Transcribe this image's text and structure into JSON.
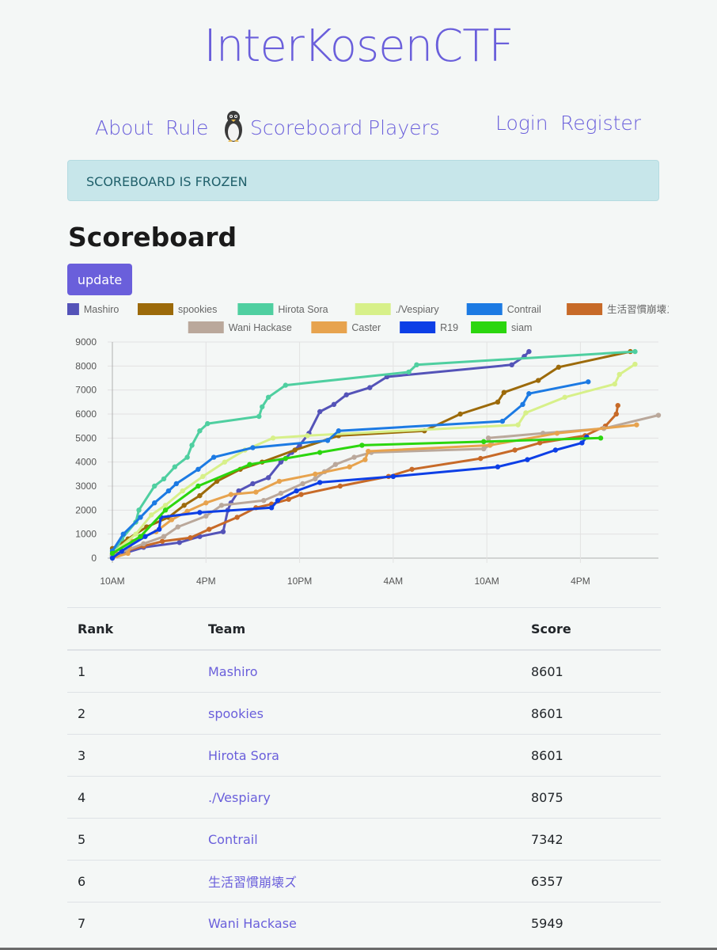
{
  "site": {
    "title": "InterKosenCTF"
  },
  "nav": {
    "about": "About",
    "rule": "Rule",
    "scoreboard": "Scoreboard",
    "players": "Players",
    "login": "Login",
    "register": "Register"
  },
  "alert": {
    "text": "SCOREBOARD IS FROZEN"
  },
  "page": {
    "heading": "Scoreboard",
    "update_label": "update"
  },
  "chart_data": {
    "type": "line",
    "y_ticks": [
      "0",
      "1000",
      "2000",
      "3000",
      "4000",
      "5000",
      "6000",
      "7000",
      "8000",
      "9000"
    ],
    "ylim": [
      0,
      9000
    ],
    "x_ticks": [
      "10AM",
      "4PM",
      "10PM",
      "4AM",
      "10AM",
      "4PM"
    ],
    "x_tick_hours": [
      0,
      6,
      12,
      18,
      24,
      30
    ],
    "xlim_hours": [
      0,
      35
    ],
    "grid": true,
    "legend_position": "top",
    "series": [
      {
        "name": "Mashiro",
        "color": "#5453b8",
        "points": [
          [
            0,
            50
          ],
          [
            2,
            450
          ],
          [
            4.3,
            650
          ],
          [
            5.6,
            900
          ],
          [
            7.1,
            1100
          ],
          [
            7.4,
            2000
          ],
          [
            7.6,
            2300
          ],
          [
            8.1,
            2800
          ],
          [
            9,
            3100
          ],
          [
            10,
            3350
          ],
          [
            10.8,
            4000
          ],
          [
            11.5,
            4400
          ],
          [
            12,
            4700
          ],
          [
            12.6,
            5200
          ],
          [
            13.3,
            6100
          ],
          [
            14.2,
            6400
          ],
          [
            15,
            6800
          ],
          [
            16.5,
            7100
          ],
          [
            17.6,
            7550
          ],
          [
            25.6,
            8050
          ],
          [
            26.4,
            8400
          ],
          [
            26.7,
            8601
          ]
        ]
      },
      {
        "name": "spookies",
        "color": "#9c6a0a",
        "points": [
          [
            0,
            400
          ],
          [
            1,
            800
          ],
          [
            2.2,
            1300
          ],
          [
            3.6,
            1700
          ],
          [
            4.6,
            2200
          ],
          [
            5.6,
            2600
          ],
          [
            6.7,
            3200
          ],
          [
            8.2,
            3700
          ],
          [
            9.6,
            4000
          ],
          [
            11.7,
            4500
          ],
          [
            14.5,
            5100
          ],
          [
            20,
            5300
          ],
          [
            22.3,
            6000
          ],
          [
            24.7,
            6500
          ],
          [
            25.1,
            6900
          ],
          [
            27.3,
            7400
          ],
          [
            28.6,
            7950
          ],
          [
            33.2,
            8601
          ]
        ]
      },
      {
        "name": "Hirota Sora",
        "color": "#4fcfa0",
        "points": [
          [
            0,
            100
          ],
          [
            0.6,
            800
          ],
          [
            1.5,
            1500
          ],
          [
            1.7,
            2000
          ],
          [
            2.7,
            3000
          ],
          [
            3.3,
            3300
          ],
          [
            4,
            3800
          ],
          [
            4.8,
            4200
          ],
          [
            5.1,
            4700
          ],
          [
            5.6,
            5300
          ],
          [
            6.1,
            5600
          ],
          [
            9.4,
            5900
          ],
          [
            9.6,
            6300
          ],
          [
            10,
            6700
          ],
          [
            11.1,
            7200
          ],
          [
            19,
            7750
          ],
          [
            19.5,
            8050
          ],
          [
            33.5,
            8601
          ]
        ]
      },
      {
        "name": "./Vespiary",
        "color": "#d7f089",
        "points": [
          [
            0,
            200
          ],
          [
            1.5,
            1000
          ],
          [
            2.5,
            1800
          ],
          [
            3.4,
            2200
          ],
          [
            4.5,
            2800
          ],
          [
            5.8,
            3400
          ],
          [
            7.2,
            4000
          ],
          [
            8.5,
            4500
          ],
          [
            10.3,
            5000
          ],
          [
            12.5,
            5100
          ],
          [
            26,
            5550
          ],
          [
            26.5,
            6050
          ],
          [
            29,
            6700
          ],
          [
            32.2,
            7250
          ],
          [
            32.5,
            7650
          ],
          [
            33.5,
            8075
          ]
        ]
      },
      {
        "name": "Contrail",
        "color": "#1c7ae3",
        "points": [
          [
            0,
            300
          ],
          [
            0.7,
            1000
          ],
          [
            1.8,
            1700
          ],
          [
            2.7,
            2300
          ],
          [
            3.6,
            2800
          ],
          [
            4.1,
            3100
          ],
          [
            5.5,
            3700
          ],
          [
            6.5,
            4200
          ],
          [
            9,
            4600
          ],
          [
            13.8,
            4900
          ],
          [
            14.5,
            5300
          ],
          [
            25,
            5700
          ],
          [
            26.3,
            6400
          ],
          [
            26.7,
            6850
          ],
          [
            30.5,
            7342
          ]
        ]
      },
      {
        "name": "生活習慣崩壊ズ",
        "color": "#c76a28",
        "points": [
          [
            0,
            150
          ],
          [
            2,
            500
          ],
          [
            3.2,
            700
          ],
          [
            5,
            850
          ],
          [
            6.2,
            1200
          ],
          [
            8,
            1700
          ],
          [
            9.2,
            2100
          ],
          [
            10.2,
            2250
          ],
          [
            11.3,
            2450
          ],
          [
            12.1,
            2650
          ],
          [
            14.6,
            3000
          ],
          [
            17.7,
            3400
          ],
          [
            19.2,
            3700
          ],
          [
            23.6,
            4150
          ],
          [
            25.8,
            4500
          ],
          [
            27.4,
            4800
          ],
          [
            30.3,
            5100
          ],
          [
            31.6,
            5500
          ],
          [
            32.3,
            6000
          ],
          [
            32.4,
            6357
          ]
        ]
      },
      {
        "name": "Wani Hackase",
        "color": "#baa89b",
        "points": [
          [
            0,
            100
          ],
          [
            2,
            600
          ],
          [
            3.3,
            900
          ],
          [
            4.2,
            1300
          ],
          [
            6,
            1750
          ],
          [
            7,
            2200
          ],
          [
            9.7,
            2400
          ],
          [
            10.8,
            2700
          ],
          [
            12.2,
            3100
          ],
          [
            13,
            3300
          ],
          [
            13.6,
            3600
          ],
          [
            14.3,
            3900
          ],
          [
            15.5,
            4200
          ],
          [
            16.6,
            4400
          ],
          [
            23.8,
            4550
          ],
          [
            24.3,
            4750
          ],
          [
            24.1,
            5000
          ],
          [
            27.6,
            5200
          ],
          [
            31.5,
            5400
          ],
          [
            35,
            5949
          ]
        ]
      },
      {
        "name": "Caster",
        "color": "#e7a34e",
        "points": [
          [
            0,
            0
          ],
          [
            1,
            200
          ],
          [
            1.3,
            700
          ],
          [
            2.8,
            1100
          ],
          [
            3.8,
            1600
          ],
          [
            4.8,
            1950
          ],
          [
            6,
            2300
          ],
          [
            7.6,
            2650
          ],
          [
            9.2,
            2750
          ],
          [
            10.7,
            3200
          ],
          [
            13,
            3500
          ],
          [
            15.2,
            3800
          ],
          [
            16.2,
            4100
          ],
          [
            16.4,
            4450
          ],
          [
            24.2,
            4700
          ],
          [
            28.5,
            5200
          ],
          [
            33.6,
            5550
          ]
        ]
      },
      {
        "name": "R19",
        "color": "#0d3fe6",
        "points": [
          [
            0,
            0
          ],
          [
            0.6,
            300
          ],
          [
            2.1,
            900
          ],
          [
            3,
            1200
          ],
          [
            3.1,
            1700
          ],
          [
            5.6,
            1900
          ],
          [
            10.2,
            2100
          ],
          [
            10.6,
            2400
          ],
          [
            11.8,
            2800
          ],
          [
            13.3,
            3150
          ],
          [
            18,
            3400
          ],
          [
            24.7,
            3800
          ],
          [
            26.6,
            4100
          ],
          [
            28.4,
            4500
          ],
          [
            30.1,
            4800
          ],
          [
            30.4,
            5040
          ]
        ]
      },
      {
        "name": "siam",
        "color": "#2bd60e",
        "points": [
          [
            0,
            200
          ],
          [
            1.8,
            900
          ],
          [
            3.4,
            2000
          ],
          [
            5.5,
            3000
          ],
          [
            8.8,
            3900
          ],
          [
            11.1,
            4150
          ],
          [
            13.3,
            4400
          ],
          [
            16,
            4700
          ],
          [
            23.8,
            4850
          ],
          [
            31.3,
            5000
          ]
        ]
      }
    ]
  },
  "table": {
    "headers": {
      "rank": "Rank",
      "team": "Team",
      "score": "Score"
    },
    "rows": [
      {
        "rank": "1",
        "team": "Mashiro",
        "score": "8601"
      },
      {
        "rank": "2",
        "team": "spookies",
        "score": "8601"
      },
      {
        "rank": "3",
        "team": "Hirota Sora",
        "score": "8601"
      },
      {
        "rank": "4",
        "team": "./Vespiary",
        "score": "8075"
      },
      {
        "rank": "5",
        "team": "Contrail",
        "score": "7342"
      },
      {
        "rank": "6",
        "team": "生活習慣崩壊ズ",
        "score": "6357"
      },
      {
        "rank": "7",
        "team": "Wani Hackase",
        "score": "5949"
      }
    ]
  }
}
